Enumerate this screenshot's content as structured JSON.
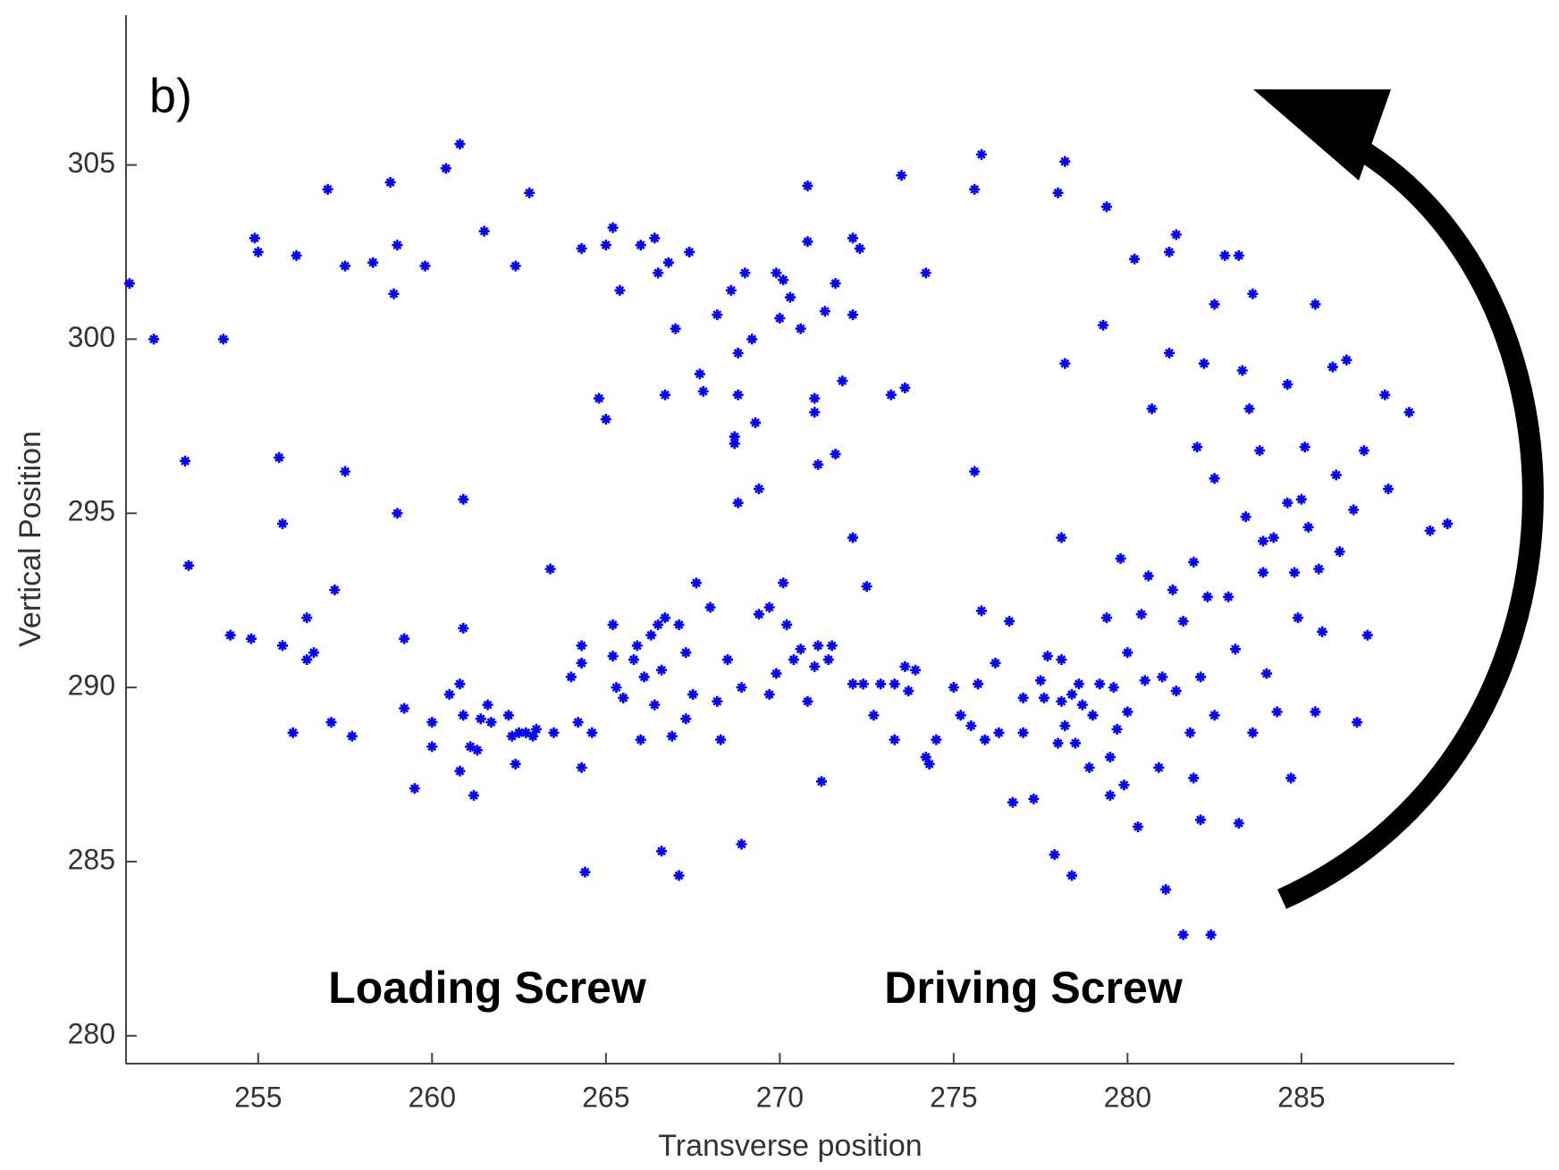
{
  "chart_data": {
    "type": "scatter",
    "panel_label": "b)",
    "xlabel": "Transverse position",
    "ylabel": "Vertical Position",
    "annotations": [
      "Loading Screw",
      "Driving Screw"
    ],
    "color": "#0000ff",
    "xlim": [
      251.2,
      289.4
    ],
    "ylim": [
      279.2,
      309.3
    ],
    "xticks": [
      255,
      260,
      265,
      270,
      275,
      280,
      285
    ],
    "yticks": [
      280,
      285,
      290,
      295,
      300,
      305
    ],
    "x": [
      251.3,
      252.0,
      252.9,
      253.0,
      254.0,
      254.2,
      254.9,
      255.0,
      254.8,
      255.6,
      255.7,
      255.7,
      256.0,
      256.1,
      256.4,
      256.4,
      256.6,
      257.0,
      257.1,
      257.2,
      257.5,
      257.5,
      257.7,
      258.3,
      258.8,
      258.9,
      259.0,
      259.0,
      259.2,
      259.2,
      259.5,
      259.8,
      260.0,
      260.0,
      260.4,
      260.5,
      260.8,
      260.8,
      260.9,
      260.9,
      260.8,
      260.9,
      261.1,
      261.2,
      261.3,
      261.4,
      261.5,
      261.6,
      261.7,
      262.2,
      262.3,
      262.4,
      262.4,
      262.5,
      262.7,
      262.8,
      262.9,
      263.0,
      263.4,
      263.5,
      264.0,
      264.2,
      264.3,
      264.3,
      264.3,
      264.3,
      264.4,
      264.6,
      264.8,
      265.0,
      265.0,
      265.2,
      265.2,
      265.2,
      265.3,
      265.4,
      265.5,
      265.8,
      265.9,
      266.0,
      266.0,
      266.1,
      266.3,
      266.4,
      266.4,
      266.5,
      266.5,
      266.6,
      266.6,
      266.7,
      266.7,
      266.8,
      266.9,
      267.0,
      267.1,
      267.1,
      267.3,
      267.3,
      267.4,
      267.5,
      267.6,
      267.7,
      267.8,
      268.0,
      268.2,
      268.2,
      268.3,
      268.5,
      268.6,
      268.7,
      268.7,
      268.8,
      268.8,
      268.8,
      268.9,
      268.9,
      269.0,
      269.2,
      269.3,
      269.4,
      269.4,
      269.7,
      269.7,
      269.9,
      269.9,
      270.0,
      270.1,
      270.1,
      270.2,
      270.3,
      270.4,
      270.6,
      270.6,
      270.8,
      270.8,
      270.8,
      271.0,
      271.0,
      271.0,
      271.1,
      271.1,
      271.2,
      271.3,
      271.4,
      271.5,
      271.6,
      271.6,
      271.8,
      272.1,
      272.1,
      272.3,
      272.1,
      272.1,
      272.4,
      272.5,
      272.7,
      272.9,
      273.2,
      273.3,
      273.3,
      273.5,
      273.6,
      273.6,
      273.7,
      273.9,
      274.2,
      274.2,
      274.3,
      274.5,
      275.0,
      275.2,
      275.5,
      275.6,
      275.6,
      275.8,
      275.7,
      275.8,
      275.9,
      276.2,
      276.3,
      276.6,
      276.7,
      277.0,
      277.0,
      277.3,
      277.5,
      277.6,
      277.7,
      277.9,
      278.0,
      278.0,
      278.1,
      278.1,
      278.1,
      278.2,
      278.2,
      278.2,
      278.4,
      278.4,
      278.5,
      278.6,
      278.7,
      278.9,
      279.0,
      279.2,
      279.3,
      279.4,
      279.4,
      279.5,
      279.5,
      279.6,
      279.7,
      279.8,
      279.9,
      280.0,
      280.0,
      280.2,
      280.3,
      280.4,
      280.5,
      280.6,
      280.7,
      280.9,
      281.0,
      281.1,
      281.2,
      281.2,
      281.3,
      281.4,
      281.4,
      281.6,
      281.6,
      281.8,
      281.9,
      281.9,
      282.0,
      282.1,
      282.2,
      282.1,
      282.3,
      282.4,
      282.5,
      282.5,
      282.5,
      282.8,
      282.9,
      283.1,
      283.2,
      283.2,
      283.3,
      283.4,
      283.5,
      283.6,
      283.6,
      283.8,
      283.9,
      283.9,
      284.0,
      284.2,
      284.3,
      284.6,
      284.6,
      284.7,
      284.8,
      284.9,
      285.0,
      285.1,
      285.2,
      285.4,
      285.4,
      285.5,
      285.6,
      285.9,
      286.0,
      286.1,
      286.3,
      286.5,
      286.6,
      286.8,
      286.9,
      287.4,
      287.5,
      288.1,
      288.7,
      289.2
    ],
    "values": [
      301.6,
      300.0,
      296.5,
      293.5,
      300.0,
      291.5,
      302.9,
      302.5,
      291.4,
      296.6,
      294.7,
      291.2,
      288.7,
      302.4,
      292.0,
      290.8,
      291.0,
      304.3,
      289.0,
      292.8,
      296.2,
      302.1,
      288.6,
      302.2,
      304.5,
      301.3,
      302.7,
      295.0,
      291.4,
      289.4,
      287.1,
      302.1,
      289.0,
      288.3,
      304.9,
      289.8,
      305.6,
      290.1,
      295.4,
      291.7,
      287.6,
      289.2,
      288.3,
      286.9,
      288.2,
      289.1,
      303.1,
      289.5,
      289.0,
      289.2,
      288.6,
      302.1,
      287.8,
      288.7,
      288.7,
      304.2,
      288.6,
      288.8,
      293.4,
      288.7,
      290.3,
      289.0,
      302.6,
      291.2,
      290.7,
      287.7,
      284.7,
      288.7,
      298.3,
      297.7,
      302.7,
      303.2,
      291.8,
      290.9,
      290.0,
      301.4,
      289.7,
      290.8,
      291.2,
      302.7,
      288.5,
      290.3,
      291.5,
      302.9,
      289.5,
      301.9,
      291.8,
      290.5,
      285.3,
      298.4,
      292.0,
      302.2,
      288.6,
      300.3,
      291.8,
      284.6,
      289.1,
      291.0,
      302.5,
      289.8,
      293.0,
      299.0,
      298.5,
      292.3,
      289.6,
      300.7,
      288.5,
      290.8,
      301.4,
      297.2,
      297.0,
      295.3,
      299.6,
      298.4,
      290.0,
      285.5,
      301.9,
      300.0,
      297.6,
      295.7,
      292.1,
      292.3,
      289.8,
      301.9,
      290.4,
      300.6,
      293.0,
      301.7,
      291.8,
      301.2,
      290.8,
      300.3,
      291.1,
      302.8,
      304.4,
      289.6,
      290.6,
      298.3,
      297.9,
      296.4,
      291.2,
      287.3,
      300.8,
      290.8,
      291.2,
      296.7,
      301.6,
      298.8,
      300.7,
      302.9,
      302.6,
      294.3,
      290.1,
      290.1,
      292.9,
      289.2,
      290.1,
      298.4,
      290.1,
      288.5,
      304.7,
      298.6,
      290.6,
      289.9,
      290.5,
      301.9,
      288.0,
      287.8,
      288.5,
      290.0,
      289.2,
      288.9,
      296.2,
      304.3,
      305.3,
      290.1,
      292.2,
      288.5,
      290.7,
      288.7,
      291.9,
      286.7,
      289.7,
      288.7,
      286.8,
      290.2,
      289.7,
      290.9,
      285.2,
      304.2,
      288.4,
      290.8,
      289.6,
      294.3,
      299.3,
      305.1,
      288.9,
      289.8,
      284.6,
      288.4,
      290.1,
      289.5,
      287.7,
      289.2,
      290.1,
      300.4,
      292.0,
      303.8,
      288.0,
      286.9,
      290.0,
      288.8,
      293.7,
      287.2,
      289.3,
      291.0,
      302.3,
      286.0,
      292.1,
      290.2,
      293.2,
      298.0,
      287.7,
      290.3,
      284.2,
      299.6,
      302.5,
      292.8,
      303.0,
      289.9,
      282.9,
      291.9,
      288.7,
      287.4,
      293.6,
      296.9,
      286.2,
      299.3,
      290.3,
      292.6,
      282.9,
      296.0,
      301.0,
      289.2,
      302.4,
      292.6,
      291.1,
      286.1,
      302.4,
      299.1,
      294.9,
      298.0,
      301.3,
      288.7,
      296.8,
      294.2,
      293.3,
      290.4,
      294.3,
      289.3,
      295.3,
      298.7,
      287.4,
      293.3,
      292.0,
      295.4,
      296.9,
      294.6,
      301.0,
      289.3,
      293.4,
      291.6,
      299.2,
      296.1,
      293.9,
      299.4,
      295.1,
      289.0,
      296.8,
      291.5,
      298.4,
      295.7,
      297.9,
      294.5,
      294.7
    ],
    "grid": false
  }
}
